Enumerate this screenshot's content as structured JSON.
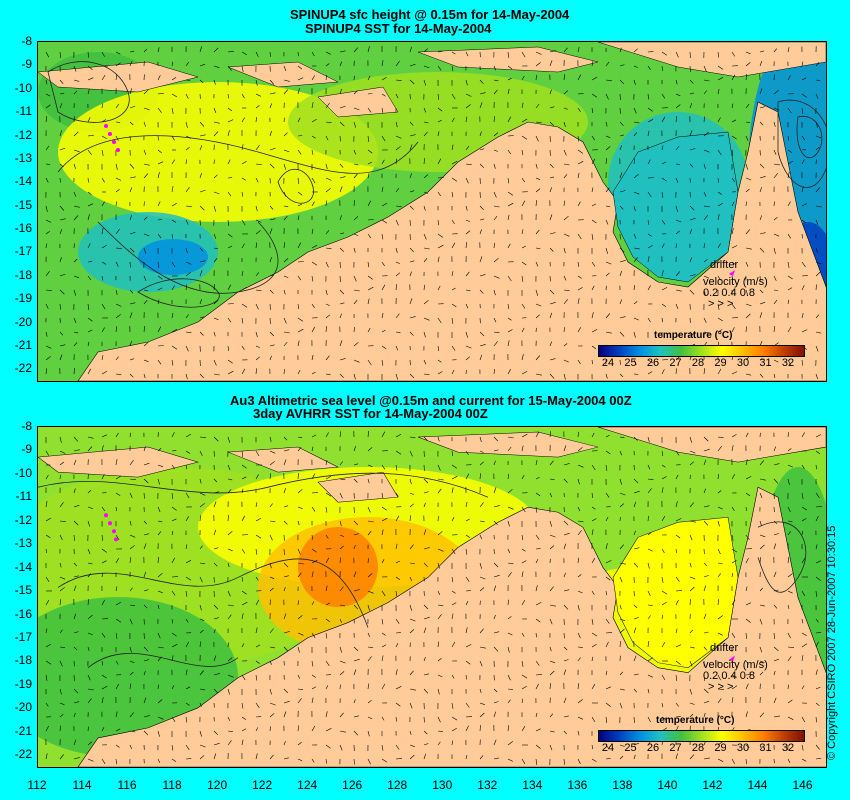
{
  "panels": [
    {
      "title_line1": "SPINUP4 sfc height @ 0.15m for 14-May-2004",
      "title_line2": "SPINUP4 SST for 14-May-2004",
      "legend": {
        "title": "temperature (°C)",
        "ticks": [
          "24",
          "25",
          "26",
          "27",
          "28",
          "29",
          "30",
          "31",
          "32"
        ]
      },
      "drifter": {
        "label": "drifter",
        "velocity_label": "velocity (m/s)",
        "scale_values": "0.2 0.4 0.8",
        "scale_arrows": "˃  ˃  >"
      }
    },
    {
      "title_line1": "Au3 Altimetric sea level  @0.15m and current for 15-May-2004 00Z",
      "title_line2": "3day AVHRR SST for 14-May-2004 00Z",
      "legend": {
        "title": "temperature (°C)",
        "ticks": [
          "24",
          "25",
          "26",
          "27",
          "28",
          "29",
          "30",
          "31",
          "32"
        ]
      },
      "drifter": {
        "label": "drifter",
        "velocity_label": "velocity (m/s)",
        "scale_values": "0.2 0.4 0.8",
        "scale_arrows": "˃  ˃  >"
      }
    }
  ],
  "map_data": {
    "lat_ticks": [
      "-8",
      "-9",
      "-10",
      "-11",
      "-12",
      "-13",
      "-14",
      "-15",
      "-16",
      "-17",
      "-18",
      "-19",
      "-20",
      "-21",
      "-22"
    ],
    "lon_ticks": [
      "112",
      "114",
      "116",
      "118",
      "120",
      "122",
      "124",
      "126",
      "128",
      "130",
      "132",
      "134",
      "136",
      "138",
      "140",
      "142",
      "144",
      "146"
    ],
    "lon_range": [
      112,
      147
    ],
    "lat_range": [
      -22.5,
      -8
    ],
    "land_color": "#ffcc99",
    "colorscale": [
      "#000080",
      "#0040c0",
      "#0090e0",
      "#20c0c0",
      "#40c040",
      "#a0e020",
      "#ffff00",
      "#ffc000",
      "#ff8000",
      "#c04000",
      "#801000"
    ]
  },
  "copyright": "© Copyright CSIRO 2007   28-Jun-2007 10:30:15"
}
